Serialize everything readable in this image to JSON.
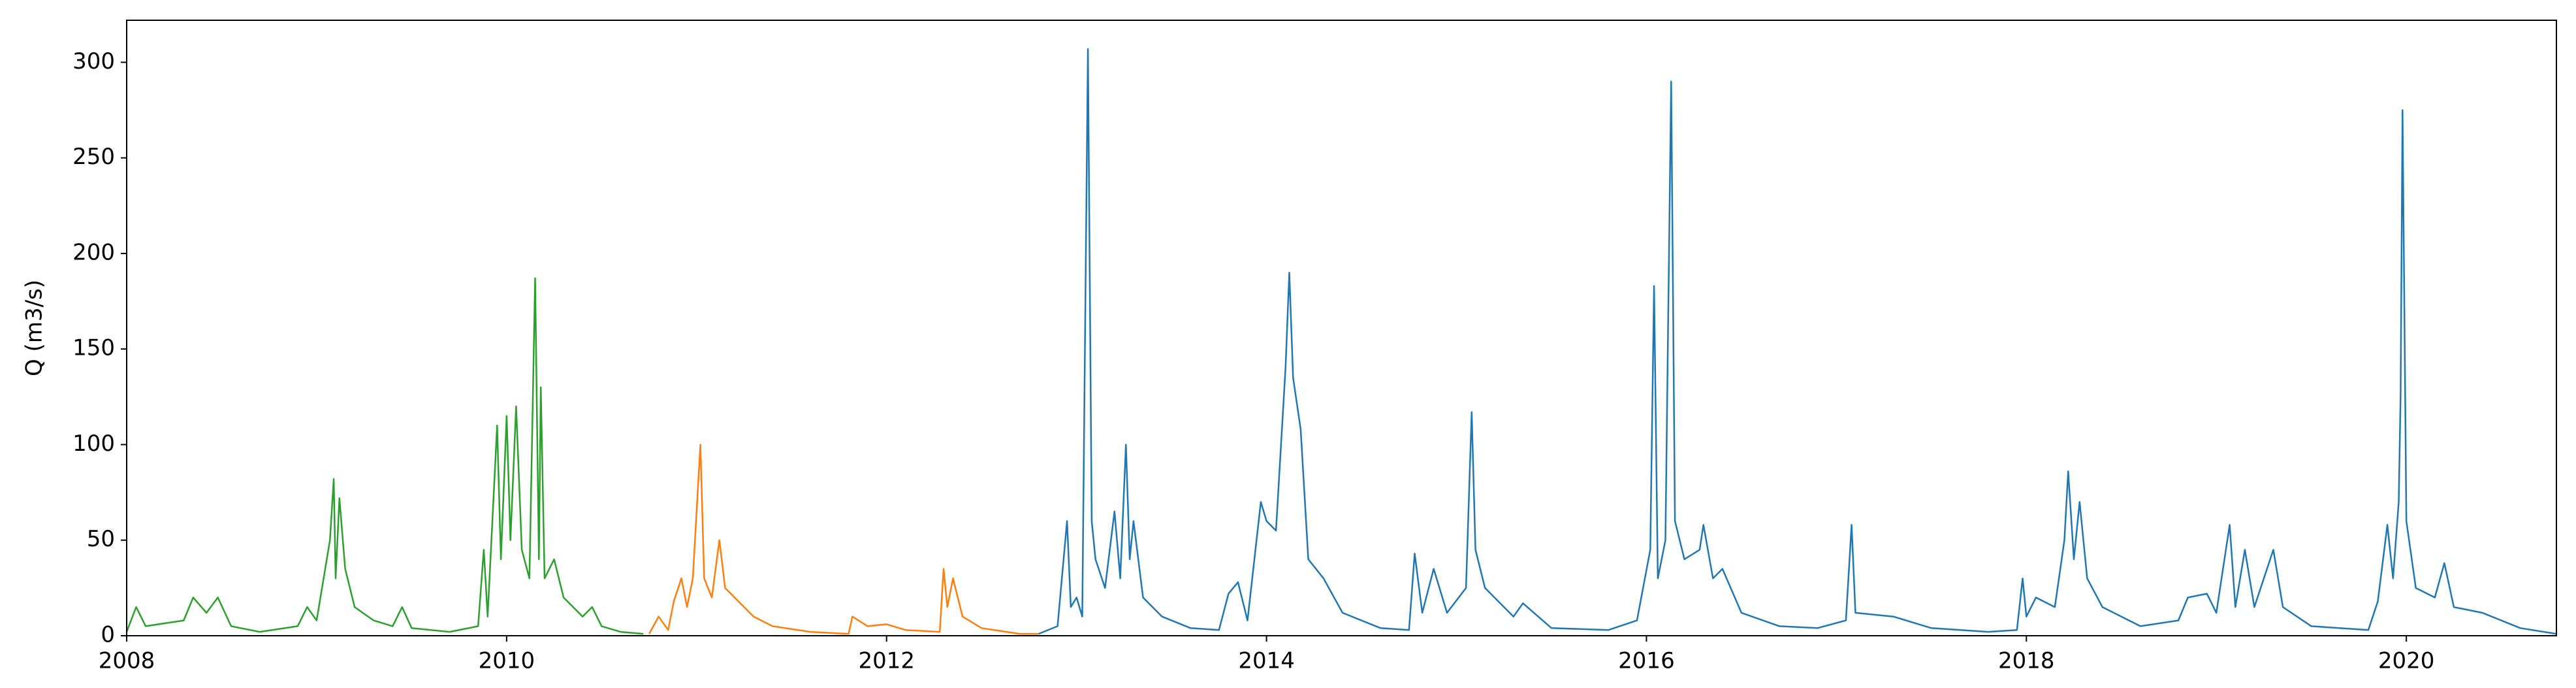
{
  "chart_data": {
    "type": "line",
    "ylabel": "Q (m3/s)",
    "xlim": [
      2008,
      2020.79
    ],
    "xticks": [
      2008,
      2010,
      2012,
      2014,
      2016,
      2018,
      2020
    ],
    "ylim": [
      0,
      322
    ],
    "yticks": [
      0,
      50,
      100,
      150,
      200,
      250,
      300
    ],
    "grid": false,
    "series": [
      {
        "color": "#2ca02c",
        "x": [
          2008.0,
          2008.05,
          2008.1,
          2008.3,
          2008.35,
          2008.42,
          2008.48,
          2008.55,
          2008.7,
          2008.9,
          2008.95,
          2009.0,
          2009.07,
          2009.09,
          2009.1,
          2009.12,
          2009.15,
          2009.2,
          2009.3,
          2009.4,
          2009.45,
          2009.5,
          2009.7,
          2009.85,
          2009.88,
          2009.9,
          2009.95,
          2009.97,
          2010.0,
          2010.02,
          2010.05,
          2010.08,
          2010.12,
          2010.15,
          2010.17,
          2010.18,
          2010.2,
          2010.25,
          2010.3,
          2010.4,
          2010.45,
          2010.5,
          2010.6,
          2010.72
        ],
        "values": [
          2,
          15,
          5,
          8,
          20,
          12,
          20,
          5,
          2,
          5,
          15,
          8,
          50,
          82,
          30,
          72,
          35,
          15,
          8,
          5,
          15,
          4,
          2,
          5,
          45,
          10,
          110,
          40,
          115,
          50,
          120,
          45,
          30,
          187,
          40,
          130,
          30,
          40,
          20,
          10,
          15,
          5,
          2,
          1
        ]
      },
      {
        "color": "#ff7f0e",
        "x": [
          2010.75,
          2010.8,
          2010.85,
          2010.88,
          2010.92,
          2010.95,
          2010.98,
          2011.02,
          2011.04,
          2011.08,
          2011.12,
          2011.15,
          2011.2,
          2011.25,
          2011.3,
          2011.4,
          2011.6,
          2011.8,
          2011.82,
          2011.9,
          2012.0,
          2012.1,
          2012.28,
          2012.3,
          2012.32,
          2012.35,
          2012.4,
          2012.5,
          2012.7,
          2012.8
        ],
        "values": [
          1,
          10,
          3,
          18,
          30,
          15,
          30,
          100,
          30,
          20,
          50,
          25,
          20,
          15,
          10,
          5,
          2,
          1,
          10,
          5,
          6,
          3,
          2,
          35,
          15,
          30,
          10,
          4,
          1,
          1
        ]
      },
      {
        "color": "#1f77b4",
        "x": [
          2012.8,
          2012.9,
          2012.95,
          2012.97,
          2013.0,
          2013.03,
          2013.06,
          2013.08,
          2013.1,
          2013.15,
          2013.2,
          2013.23,
          2013.26,
          2013.28,
          2013.3,
          2013.35,
          2013.45,
          2013.6,
          2013.75,
          2013.8,
          2013.85,
          2013.9,
          2013.97,
          2014.0,
          2014.05,
          2014.1,
          2014.12,
          2014.14,
          2014.18,
          2014.22,
          2014.3,
          2014.4,
          2014.6,
          2014.75,
          2014.78,
          2014.82,
          2014.88,
          2014.95,
          2015.05,
          2015.08,
          2015.1,
          2015.15,
          2015.3,
          2015.35,
          2015.5,
          2015.8,
          2015.95,
          2016.02,
          2016.04,
          2016.06,
          2016.1,
          2016.13,
          2016.15,
          2016.2,
          2016.28,
          2016.3,
          2016.35,
          2016.4,
          2016.5,
          2016.7,
          2016.9,
          2017.05,
          2017.08,
          2017.1,
          2017.3,
          2017.5,
          2017.8,
          2017.95,
          2017.98,
          2018.0,
          2018.05,
          2018.15,
          2018.2,
          2018.22,
          2018.25,
          2018.28,
          2018.32,
          2018.4,
          2018.6,
          2018.8,
          2018.85,
          2018.95,
          2019.0,
          2019.07,
          2019.1,
          2019.15,
          2019.2,
          2019.3,
          2019.35,
          2019.5,
          2019.8,
          2019.85,
          2019.9,
          2019.93,
          2019.96,
          2019.97,
          2019.98,
          2020.0,
          2020.05,
          2020.15,
          2020.2,
          2020.25,
          2020.4,
          2020.6,
          2020.79
        ],
        "values": [
          1,
          5,
          60,
          15,
          20,
          10,
          307,
          60,
          40,
          25,
          65,
          30,
          100,
          40,
          60,
          20,
          10,
          4,
          3,
          22,
          28,
          8,
          70,
          60,
          55,
          140,
          190,
          135,
          108,
          40,
          30,
          12,
          4,
          3,
          43,
          12,
          35,
          12,
          25,
          117,
          45,
          25,
          10,
          17,
          4,
          3,
          8,
          45,
          183,
          30,
          50,
          290,
          60,
          40,
          45,
          58,
          30,
          35,
          12,
          5,
          4,
          8,
          58,
          12,
          10,
          4,
          2,
          3,
          30,
          10,
          20,
          15,
          50,
          86,
          40,
          70,
          30,
          15,
          5,
          8,
          20,
          22,
          12,
          58,
          15,
          45,
          15,
          45,
          15,
          5,
          3,
          18,
          58,
          30,
          70,
          126,
          275,
          60,
          25,
          20,
          38,
          15,
          12,
          4,
          1
        ]
      }
    ]
  }
}
